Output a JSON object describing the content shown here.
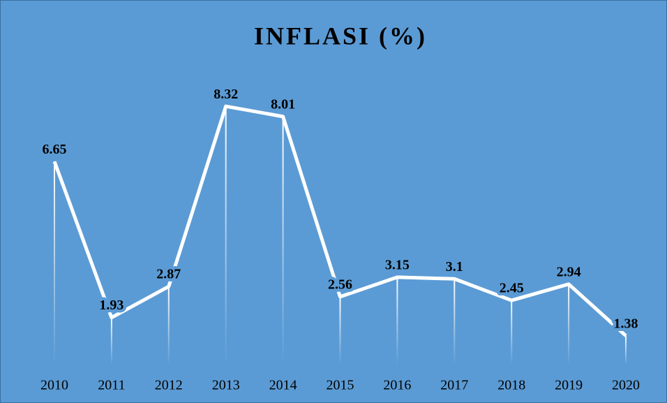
{
  "chart_data": {
    "type": "line",
    "title": "INFLASI (%)",
    "categories": [
      "2010",
      "2011",
      "2012",
      "2013",
      "2014",
      "2015",
      "2016",
      "2017",
      "2018",
      "2019",
      "2020"
    ],
    "values": [
      6.65,
      1.93,
      2.87,
      8.32,
      8.01,
      2.56,
      3.15,
      3.1,
      2.45,
      2.94,
      1.38
    ],
    "color": "#ffffff",
    "background": "#5b9bd5",
    "ylim": [
      0,
      9
    ],
    "drop_lines": true
  }
}
